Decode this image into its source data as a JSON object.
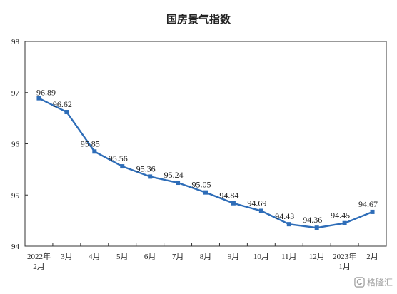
{
  "chart_data": {
    "type": "line",
    "title": "国房景气指数",
    "xlabel": "",
    "ylabel": "",
    "ylim": [
      94,
      98
    ],
    "y_ticks": [
      "94",
      "95",
      "96",
      "97",
      "98"
    ],
    "categories": [
      [
        "2022年",
        "2月"
      ],
      [
        "3月"
      ],
      [
        "4月"
      ],
      [
        "5月"
      ],
      [
        "6月"
      ],
      [
        "7月"
      ],
      [
        "8月"
      ],
      [
        "9月"
      ],
      [
        "10月"
      ],
      [
        "11月"
      ],
      [
        "12月"
      ],
      [
        "2023年",
        "1月"
      ],
      [
        "2月"
      ]
    ],
    "series": [
      {
        "values": [
          96.89,
          96.62,
          95.85,
          95.56,
          95.36,
          95.24,
          95.05,
          94.84,
          94.69,
          94.43,
          94.36,
          94.45,
          94.67
        ],
        "labels": [
          "96.89",
          "96.62",
          "95.85",
          "95.56",
          "95.36",
          "95.24",
          "95.05",
          "94.84",
          "94.69",
          "94.43",
          "94.36",
          "94.45",
          "94.67"
        ]
      }
    ],
    "grid": false,
    "colors": {
      "line": "#2E6DB8",
      "axis": "#333333",
      "text": "#222222"
    }
  },
  "watermark": {
    "text": "格隆汇"
  }
}
